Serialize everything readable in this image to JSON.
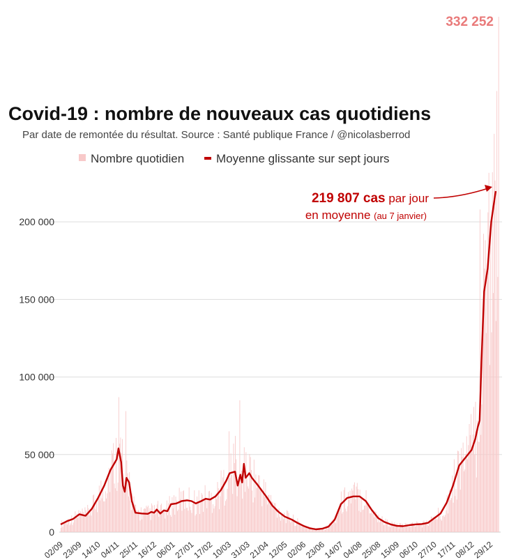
{
  "chart_data": {
    "type": "bar",
    "title": "Covid-19 : nombre de nouveaux cas quotidiens",
    "subtitle": "Par date de remontée du résultat. Source : Santé publique France / @nicolasberrod",
    "legend": {
      "position": "top",
      "entries": [
        "Nombre quotidien",
        "Moyenne glissante sur sept jours"
      ]
    },
    "colors": {
      "daily_bars": "#f8c9c9",
      "average_line": "#c00000",
      "peak_label": "#e97a7a",
      "grid": "#dddddd"
    },
    "ylim": [
      0,
      332252
    ],
    "grid": true,
    "y_ticks": [
      0,
      50000,
      100000,
      150000,
      200000
    ],
    "y_tick_labels": [
      "0",
      "50 000",
      "100 000",
      "150 000",
      "200 000"
    ],
    "x_tick_labels": [
      "02/09",
      "23/09",
      "14/10",
      "04/11",
      "25/11",
      "16/12",
      "06/01",
      "27/01",
      "17/02",
      "10/03",
      "31/03",
      "21/04",
      "12/05",
      "02/06",
      "23/06",
      "14/07",
      "04/08",
      "25/08",
      "15/09",
      "06/10",
      "27/10",
      "17/11",
      "08/12",
      "29/12"
    ],
    "x_tick_days": [
      0,
      21,
      42,
      63,
      84,
      105,
      126,
      147,
      168,
      189,
      210,
      231,
      252,
      273,
      294,
      315,
      336,
      357,
      378,
      399,
      420,
      441,
      462,
      483
    ],
    "total_days": 493,
    "series": [
      {
        "name": "Moyenne glissante sur sept jours",
        "type": "line",
        "points": [
          [
            0,
            5000
          ],
          [
            7,
            7000
          ],
          [
            14,
            8500
          ],
          [
            21,
            11500
          ],
          [
            28,
            10500
          ],
          [
            35,
            15000
          ],
          [
            42,
            22000
          ],
          [
            49,
            30000
          ],
          [
            56,
            40000
          ],
          [
            60,
            44000
          ],
          [
            63,
            47000
          ],
          [
            65,
            54000
          ],
          [
            68,
            45000
          ],
          [
            70,
            30000
          ],
          [
            72,
            26000
          ],
          [
            74,
            35000
          ],
          [
            77,
            32000
          ],
          [
            80,
            20000
          ],
          [
            84,
            12500
          ],
          [
            91,
            12000
          ],
          [
            98,
            11800
          ],
          [
            102,
            13000
          ],
          [
            105,
            12500
          ],
          [
            108,
            14500
          ],
          [
            112,
            12000
          ],
          [
            116,
            14000
          ],
          [
            120,
            13500
          ],
          [
            124,
            18000
          ],
          [
            130,
            18500
          ],
          [
            136,
            20000
          ],
          [
            142,
            20500
          ],
          [
            147,
            20000
          ],
          [
            152,
            18500
          ],
          [
            158,
            20000
          ],
          [
            163,
            21500
          ],
          [
            168,
            21000
          ],
          [
            174,
            23000
          ],
          [
            180,
            27000
          ],
          [
            186,
            33000
          ],
          [
            190,
            38000
          ],
          [
            196,
            39000
          ],
          [
            199,
            30000
          ],
          [
            202,
            37000
          ],
          [
            204,
            32000
          ],
          [
            206,
            44000
          ],
          [
            208,
            35000
          ],
          [
            212,
            38000
          ],
          [
            215,
            35000
          ],
          [
            222,
            30000
          ],
          [
            231,
            23000
          ],
          [
            238,
            17000
          ],
          [
            245,
            13000
          ],
          [
            252,
            10000
          ],
          [
            260,
            8000
          ],
          [
            266,
            6000
          ],
          [
            273,
            4000
          ],
          [
            280,
            2500
          ],
          [
            287,
            1800
          ],
          [
            294,
            2200
          ],
          [
            301,
            3500
          ],
          [
            308,
            8000
          ],
          [
            315,
            18000
          ],
          [
            322,
            22000
          ],
          [
            329,
            23000
          ],
          [
            336,
            23000
          ],
          [
            343,
            20000
          ],
          [
            350,
            14000
          ],
          [
            357,
            9000
          ],
          [
            364,
            6500
          ],
          [
            371,
            5000
          ],
          [
            378,
            4000
          ],
          [
            385,
            3800
          ],
          [
            392,
            4500
          ],
          [
            399,
            5000
          ],
          [
            406,
            5200
          ],
          [
            413,
            6000
          ],
          [
            420,
            9000
          ],
          [
            427,
            12000
          ],
          [
            434,
            19000
          ],
          [
            441,
            30000
          ],
          [
            448,
            43000
          ],
          [
            455,
            48000
          ],
          [
            462,
            53000
          ],
          [
            466,
            60000
          ],
          [
            469,
            68000
          ],
          [
            471,
            72000
          ],
          [
            473,
            110000
          ],
          [
            476,
            155000
          ],
          [
            480,
            170000
          ],
          [
            484,
            200000
          ],
          [
            489,
            219807
          ]
        ],
        "last_value": 219807
      },
      {
        "name": "Nombre quotidien",
        "type": "bar",
        "notable_values": [
          {
            "day": 65,
            "value": 87000
          },
          {
            "day": 69,
            "value": 60000
          },
          {
            "day": 73,
            "value": 78000
          },
          {
            "day": 189,
            "value": 65000
          },
          {
            "day": 196,
            "value": 62000
          },
          {
            "day": 201,
            "value": 85000
          },
          {
            "day": 471,
            "value": 208000
          },
          {
            "day": 485,
            "value": 232000
          },
          {
            "day": 492,
            "value": 332252
          }
        ],
        "max": 332252
      }
    ],
    "annotations": {
      "peak_label": "332 252",
      "current_value_strong": "219 807 cas",
      "current_value_rest": " par jour",
      "line2_main": "en moyenne ",
      "line2_small": "(au 7 janvier)"
    }
  }
}
